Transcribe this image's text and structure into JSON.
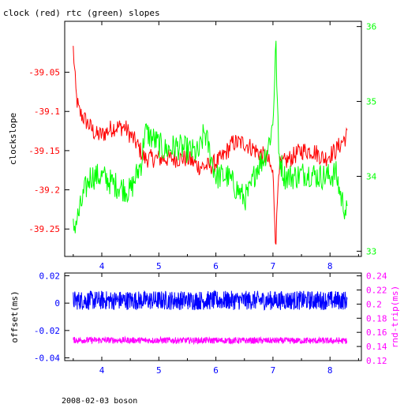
{
  "title": "clock (red) rtc (green) slopes",
  "footer": "2008-02-03 boson",
  "colors": {
    "clock": "#ff0000",
    "rtc": "#00ff00",
    "offset": "#0000ff",
    "rtt": "#ff00ff",
    "frame": "#000000"
  },
  "chart_data": [
    {
      "type": "line",
      "ylabel": "clockslope",
      "y2label": "",
      "xlim": [
        3.35,
        8.55
      ],
      "ylim": [
        -39.285,
        -38.985
      ],
      "y2lim": [
        32.93,
        36.07
      ],
      "x_ticks": [
        "4",
        "5",
        "6",
        "7",
        "8"
      ],
      "y_ticks": [
        "-39.05",
        "-39.1",
        "-39.15",
        "-39.2",
        "-39.25"
      ],
      "y2_ticks": [
        "33",
        "34",
        "35",
        "36"
      ],
      "series": [
        {
          "axis": "left",
          "color": "#ff0000",
          "noise": 0.012,
          "points": [
            [
              3.5,
              -39.02
            ],
            [
              3.55,
              -39.08
            ],
            [
              3.6,
              -39.1
            ],
            [
              3.7,
              -39.11
            ],
            [
              3.8,
              -39.12
            ],
            [
              3.9,
              -39.13
            ],
            [
              4.0,
              -39.13
            ],
            [
              4.2,
              -39.12
            ],
            [
              4.4,
              -39.12
            ],
            [
              4.5,
              -39.13
            ],
            [
              4.6,
              -39.14
            ],
            [
              4.75,
              -39.16
            ],
            [
              5.0,
              -39.16
            ],
            [
              5.3,
              -39.16
            ],
            [
              5.5,
              -39.16
            ],
            [
              5.7,
              -39.17
            ],
            [
              5.9,
              -39.17
            ],
            [
              6.1,
              -39.16
            ],
            [
              6.2,
              -39.15
            ],
            [
              6.3,
              -39.14
            ],
            [
              6.5,
              -39.14
            ],
            [
              6.7,
              -39.15
            ],
            [
              6.9,
              -39.16
            ],
            [
              7.0,
              -39.18
            ],
            [
              7.05,
              -39.27
            ],
            [
              7.1,
              -39.17
            ],
            [
              7.3,
              -39.16
            ],
            [
              7.5,
              -39.15
            ],
            [
              7.7,
              -39.15
            ],
            [
              7.9,
              -39.16
            ],
            [
              8.1,
              -39.15
            ],
            [
              8.3,
              -39.13
            ]
          ]
        },
        {
          "axis": "right",
          "color": "#00ff00",
          "noise": 0.18,
          "points": [
            [
              3.5,
              33.3
            ],
            [
              3.6,
              33.5
            ],
            [
              3.7,
              33.8
            ],
            [
              3.8,
              34.0
            ],
            [
              4.0,
              34.0
            ],
            [
              4.2,
              33.9
            ],
            [
              4.5,
              33.8
            ],
            [
              4.6,
              34.0
            ],
            [
              4.7,
              34.2
            ],
            [
              4.75,
              34.6
            ],
            [
              4.9,
              34.5
            ],
            [
              5.1,
              34.35
            ],
            [
              5.3,
              34.4
            ],
            [
              5.5,
              34.35
            ],
            [
              5.7,
              34.3
            ],
            [
              5.8,
              34.6
            ],
            [
              5.9,
              34.3
            ],
            [
              6.0,
              34.0
            ],
            [
              6.2,
              34.0
            ],
            [
              6.3,
              33.9
            ],
            [
              6.5,
              33.7
            ],
            [
              6.6,
              33.8
            ],
            [
              6.7,
              34.1
            ],
            [
              6.8,
              34.2
            ],
            [
              6.9,
              34.35
            ],
            [
              7.0,
              34.7
            ],
            [
              7.05,
              35.8
            ],
            [
              7.1,
              34.3
            ],
            [
              7.2,
              34.0
            ],
            [
              7.4,
              34.0
            ],
            [
              7.6,
              34.05
            ],
            [
              7.8,
              34.0
            ],
            [
              8.0,
              34.0
            ],
            [
              8.1,
              34.05
            ],
            [
              8.2,
              33.7
            ],
            [
              8.3,
              33.5
            ]
          ]
        }
      ]
    },
    {
      "type": "line",
      "ylabel": "offset(ms)",
      "y2label": "rnd-trip(ms)",
      "xlim": [
        3.35,
        8.55
      ],
      "ylim": [
        -0.042,
        0.022
      ],
      "y2lim": [
        0.12,
        0.244
      ],
      "x_ticks": [
        "4",
        "5",
        "6",
        "7",
        "8"
      ],
      "y_ticks": [
        "0.02",
        "0",
        "-0.02",
        "-0.04"
      ],
      "y2_ticks": [
        "0.24",
        "0.22",
        "0.2",
        "0.18",
        "0.16",
        "0.14",
        "0.12"
      ],
      "series": [
        {
          "axis": "left",
          "color": "#0000ff",
          "noise": 0.007,
          "points": [
            [
              3.5,
              0.002
            ],
            [
              8.3,
              0.002
            ]
          ]
        },
        {
          "axis": "right",
          "color": "#ff00ff",
          "noise": 0.0045,
          "points": [
            [
              3.5,
              0.149
            ],
            [
              8.3,
              0.148
            ]
          ]
        }
      ]
    }
  ]
}
